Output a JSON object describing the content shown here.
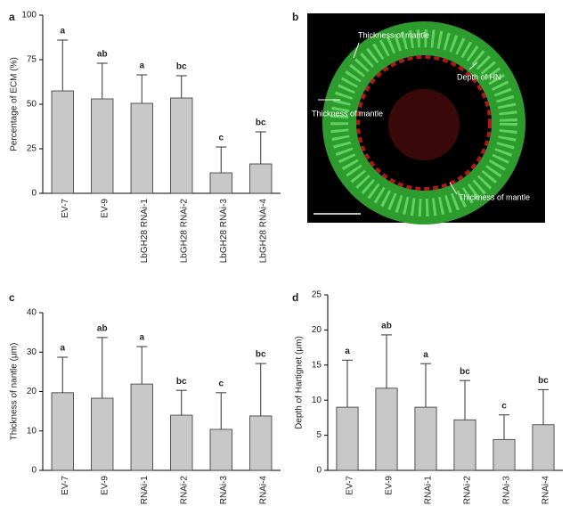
{
  "image_panel": {
    "label": "b",
    "annotations": [
      "Thickness of mantle",
      "Depth of HN",
      "Thickness of mantle",
      "Thickness of mantle"
    ]
  },
  "chart_data": [
    {
      "type": "bar",
      "panel": "a",
      "y_label": "Percentage of ECM (%)",
      "categories": [
        "EV-7",
        "EV-9",
        "LbGH28 RNAi-1",
        "LbGH28 RNAi-2",
        "LbGH28 RNAi-3",
        "LbGH28 RNAi-4"
      ],
      "values": [
        57.5,
        53,
        50.5,
        53.5,
        11.5,
        16.5
      ],
      "errors": [
        28.5,
        20,
        16,
        12.5,
        14.5,
        18
      ],
      "letters": [
        "a",
        "ab",
        "a",
        "bc",
        "c",
        "bc"
      ],
      "color": "#c8c8c8",
      "ylim": [
        0,
        100
      ],
      "yticks": [
        0,
        25,
        50,
        75,
        100
      ]
    },
    {
      "type": "bar",
      "panel": "c",
      "y_label": "Thickness of nantle (μm)",
      "categories": [
        "EV-7",
        "EV-9",
        "RNAi-1",
        "RNAi-2",
        "RNAi-3",
        "RNAi-4"
      ],
      "values": [
        19.7,
        18.3,
        21.9,
        14,
        10.4,
        13.8
      ],
      "errors": [
        9,
        15.4,
        9.5,
        6.3,
        9.3,
        13.3
      ],
      "letters": [
        "a",
        "ab",
        "a",
        "bc",
        "c",
        "bc"
      ],
      "color": "#c8c8c8",
      "ylim": [
        0,
        40
      ],
      "yticks": [
        0,
        10,
        20,
        30,
        40
      ]
    },
    {
      "type": "bar",
      "panel": "d",
      "y_label": "Depth of Hartignet (μm)",
      "categories": [
        "EV-7",
        "EV-9",
        "RNAi-1",
        "RNAi-2",
        "RNAi-3",
        "RNAi-4"
      ],
      "values": [
        9,
        11.7,
        9,
        7.2,
        4.4,
        6.5
      ],
      "errors": [
        6.7,
        7.6,
        6.2,
        5.6,
        3.5,
        5
      ],
      "letters": [
        "a",
        "ab",
        "a",
        "bc",
        "c",
        "bc"
      ],
      "color": "#c8c8c8",
      "ylim": [
        0,
        25
      ],
      "yticks": [
        0,
        5,
        10,
        15,
        20,
        25
      ]
    }
  ]
}
